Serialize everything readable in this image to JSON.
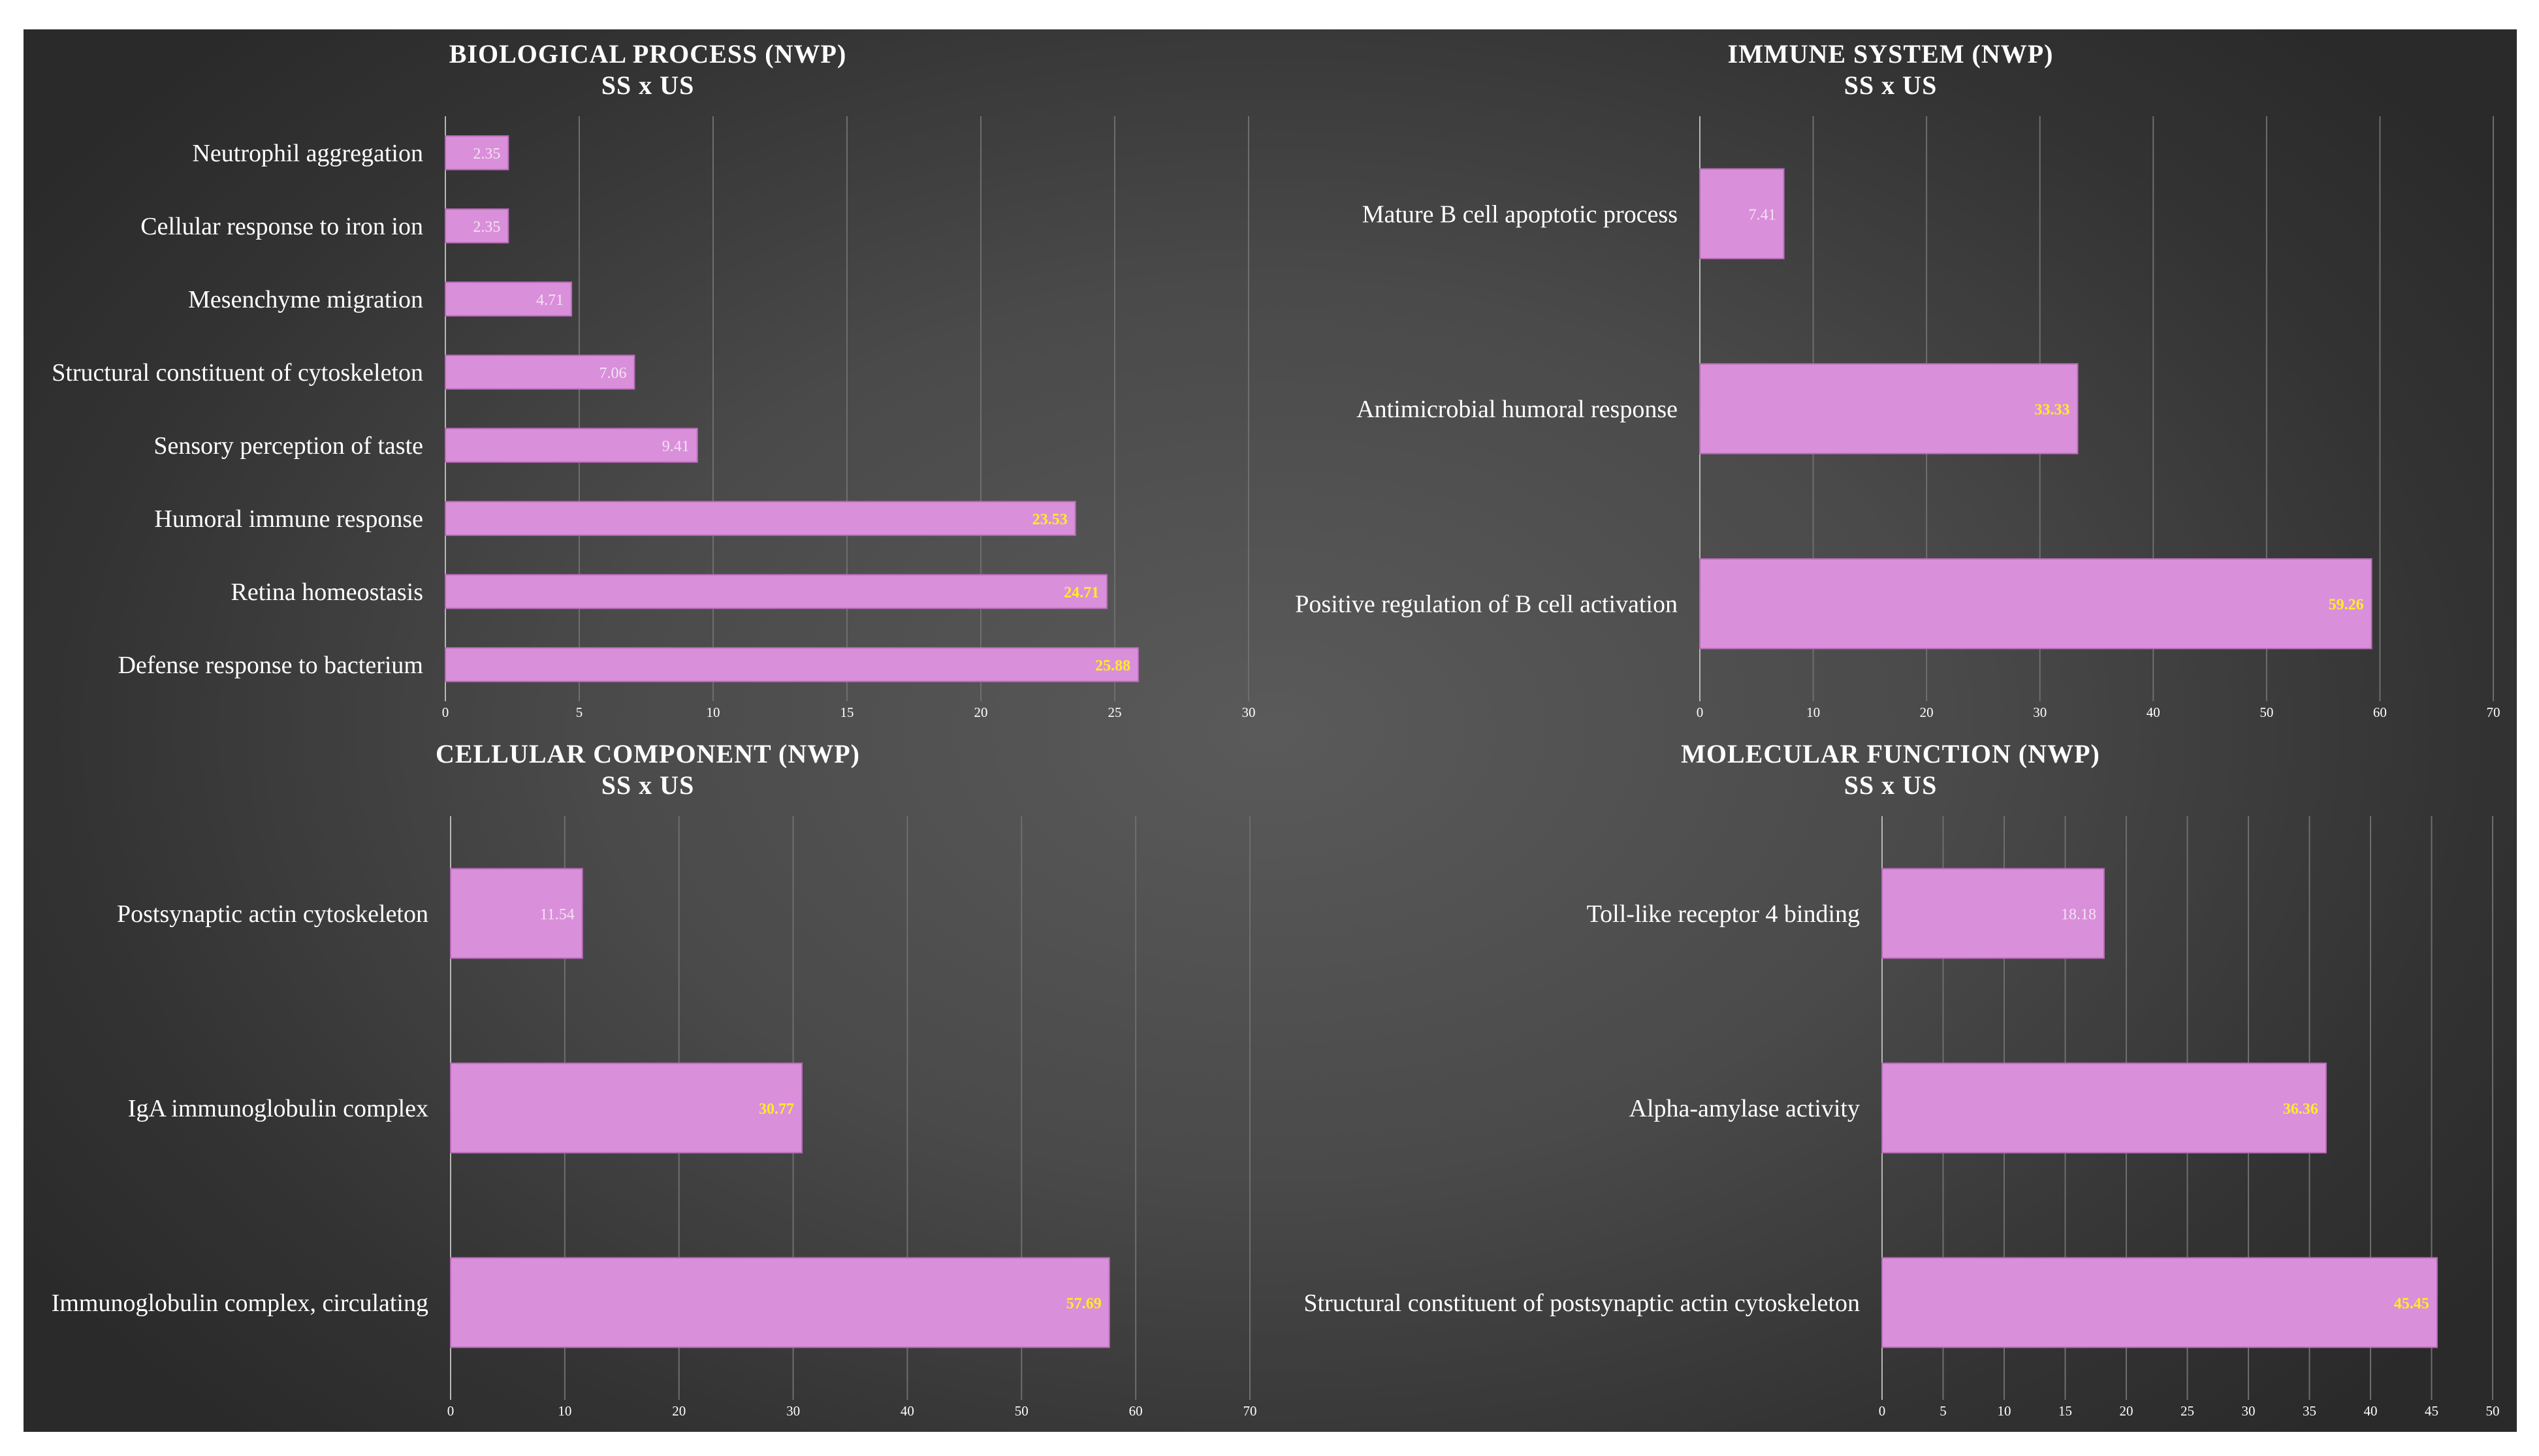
{
  "colors": {
    "bar": "#da8fda",
    "bar_stroke": "#b86cb8",
    "grid": "#6e6e6e",
    "axis": "#b8b8b8",
    "label_high": "#ffee22",
    "label_low": "#f4e2f4"
  },
  "chart_data": [
    {
      "type": "bar",
      "orientation": "horizontal",
      "title": "BIOLOGICAL PROCESS (NWP)",
      "subtitle": "SS x US",
      "categories": [
        "Neutrophil aggregation",
        "Cellular response to iron ion",
        "Mesenchyme migration",
        "Structural constituent of cytoskeleton",
        "Sensory perception of taste",
        "Humoral immune response",
        "Retina homeostasis",
        "Defense response to bacterium"
      ],
      "values": [
        2.35,
        2.35,
        4.71,
        7.06,
        9.41,
        23.53,
        24.71,
        25.88
      ],
      "value_labels": [
        "2.35",
        "2.35",
        "4.71",
        "7.06",
        "9.41",
        "23.53",
        "24.71",
        "25.88"
      ],
      "ticks": [
        0,
        5,
        10,
        15,
        20,
        25,
        30
      ],
      "xlim": [
        0,
        30
      ],
      "grid": true
    },
    {
      "type": "bar",
      "orientation": "horizontal",
      "title": "IMMUNE SYSTEM (NWP)",
      "subtitle": "SS x US",
      "categories": [
        "Mature B cell apoptotic process",
        "Antimicrobial humoral response",
        "Positive regulation of B cell activation"
      ],
      "values": [
        7.41,
        33.33,
        59.26
      ],
      "value_labels": [
        "7.41",
        "33.33",
        "59.26"
      ],
      "ticks": [
        0,
        10,
        20,
        30,
        40,
        50,
        60,
        70
      ],
      "xlim": [
        0,
        70
      ],
      "grid": true
    },
    {
      "type": "bar",
      "orientation": "horizontal",
      "title": "CELLULAR COMPONENT (NWP)",
      "subtitle": "SS x US",
      "categories": [
        "Postsynaptic actin cytoskeleton",
        "IgA immunoglobulin complex",
        "Immunoglobulin complex, circulating"
      ],
      "values": [
        11.54,
        30.77,
        57.69
      ],
      "value_labels": [
        "11.54",
        "30.77",
        "57.69"
      ],
      "ticks": [
        0,
        10,
        20,
        30,
        40,
        50,
        60,
        70
      ],
      "xlim": [
        0,
        70
      ],
      "grid": true
    },
    {
      "type": "bar",
      "orientation": "horizontal",
      "title": "MOLECULAR FUNCTION (NWP)",
      "subtitle": "SS x US",
      "categories": [
        "Toll-like receptor 4 binding",
        "Alpha-amylase activity",
        "Structural constituent of postsynaptic actin cytoskeleton"
      ],
      "values": [
        18.18,
        36.36,
        45.45
      ],
      "value_labels": [
        "18.18",
        "36.36",
        "45.45"
      ],
      "ticks": [
        0,
        5,
        10,
        15,
        20,
        25,
        30,
        35,
        40,
        45,
        50
      ],
      "xlim": [
        0,
        50
      ],
      "grid": true
    }
  ]
}
